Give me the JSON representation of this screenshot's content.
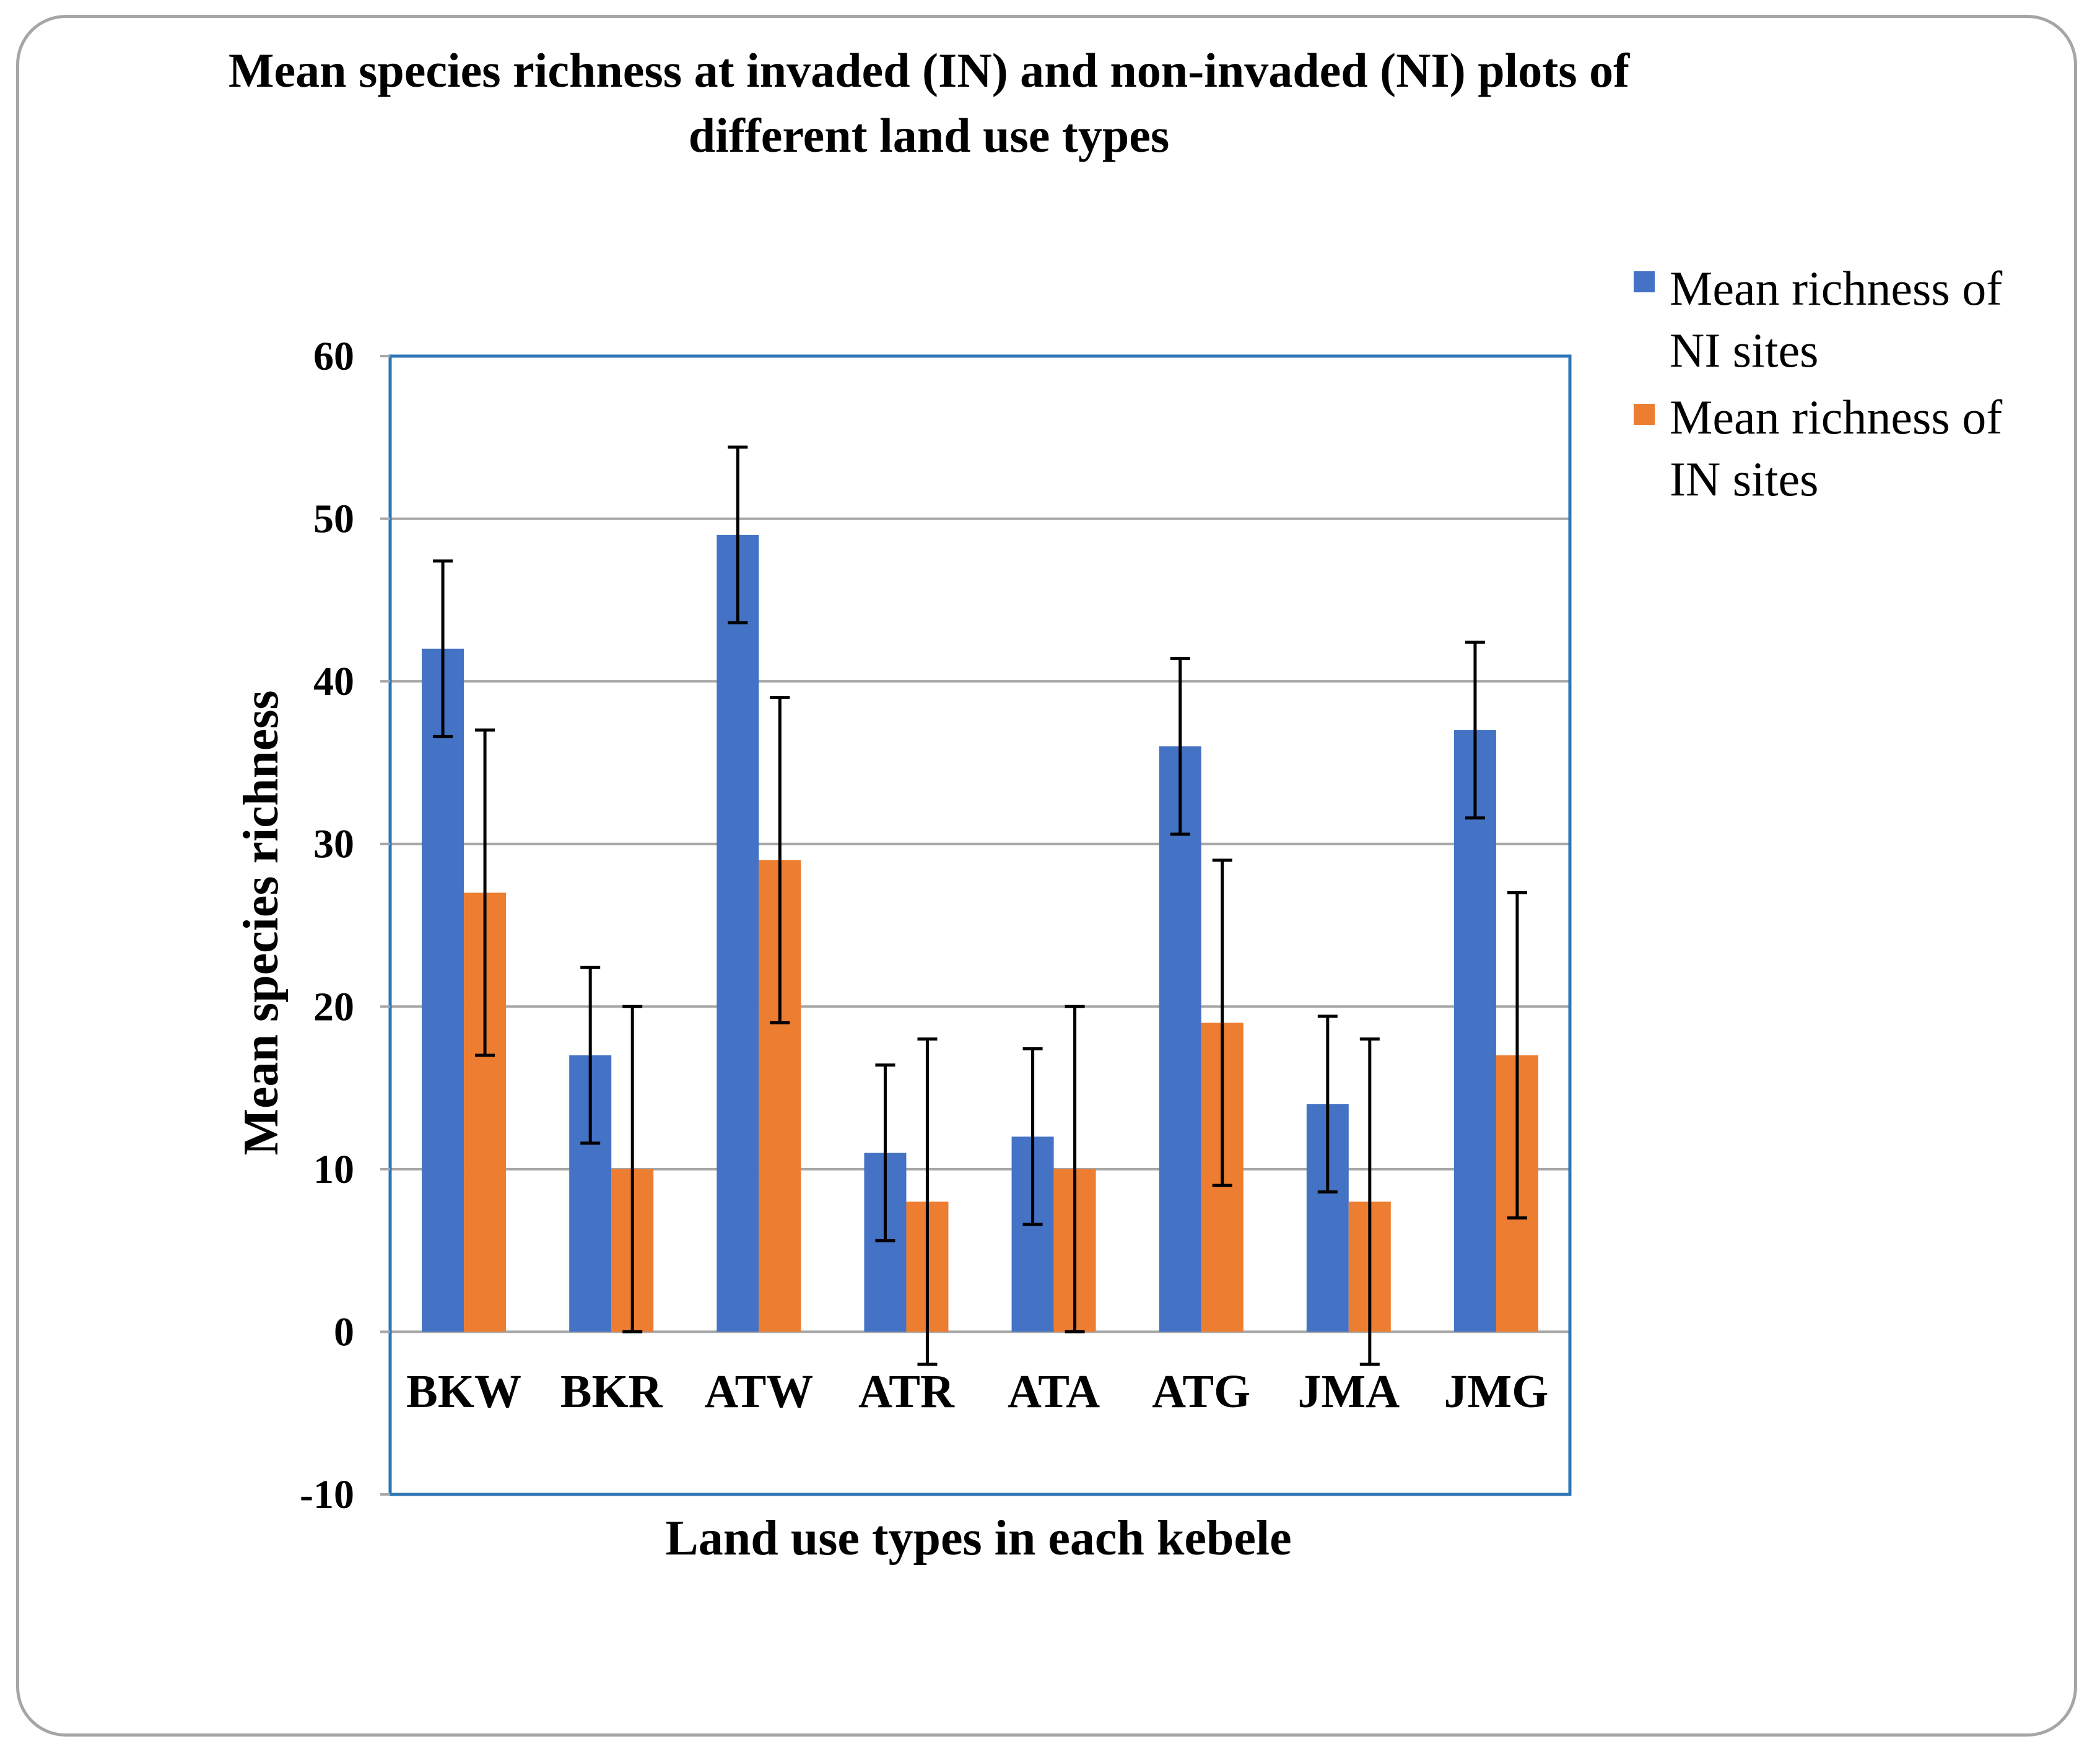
{
  "chart_data": {
    "type": "bar",
    "title_lines": [
      "Mean species richness at invaded (IN) and non-invaded (NI) plots of",
      "different land use types"
    ],
    "xlabel": "Land use types in each kebele",
    "ylabel": "Mean species richness",
    "ylim": [
      -10,
      60
    ],
    "yticks": [
      -10,
      0,
      10,
      20,
      30,
      40,
      50,
      60
    ],
    "grid": true,
    "legend_position": "top-right",
    "categories": [
      "BKW",
      "BKR",
      "ATW",
      "ATR",
      "ATA",
      "ATG",
      "JMA",
      "JMG"
    ],
    "series": [
      {
        "name": "Mean richness of NI sites",
        "legend_lines": [
          "Mean richness of",
          "NI sites"
        ],
        "color": "#4472c4",
        "values": [
          42,
          17,
          49,
          11,
          12,
          36,
          14,
          37
        ],
        "error": [
          5.4,
          5.4,
          5.4,
          5.4,
          5.4,
          5.4,
          5.4,
          5.4
        ]
      },
      {
        "name": "Mean richness of IN sites",
        "legend_lines": [
          "Mean richness of",
          "IN sites"
        ],
        "color": "#ed7d31",
        "values": [
          27,
          10,
          29,
          8,
          10,
          19,
          8,
          17
        ],
        "error": [
          10,
          10,
          10,
          10,
          10,
          10,
          10,
          10
        ]
      }
    ],
    "plot_border_color": "#2e75b6",
    "gridline_color": "#a6a6a6"
  }
}
